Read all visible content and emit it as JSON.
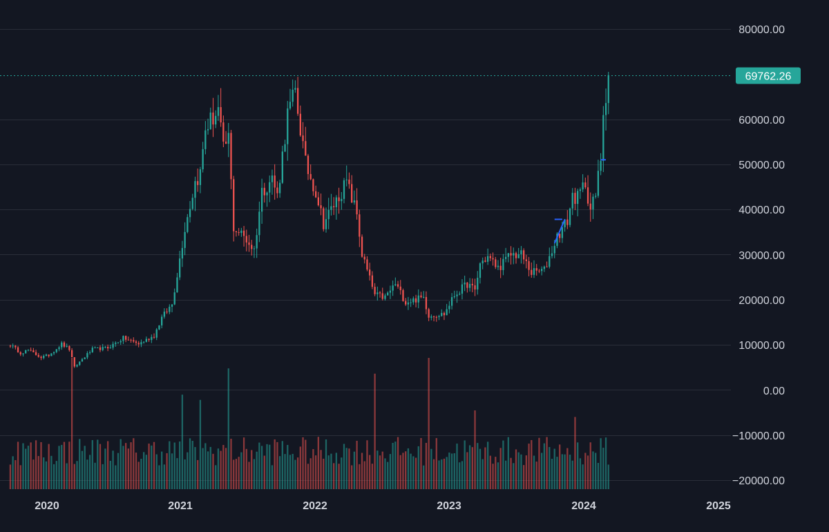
{
  "chart_data": {
    "type": "candlestick",
    "title": "",
    "xlabel": "",
    "ylabel": "",
    "ylim": [
      -23000,
      86000
    ],
    "y_ticks": [
      "80000.00",
      "60000.00",
      "50000.00",
      "40000.00",
      "30000.00",
      "20000.00",
      "10000.00",
      "0.00",
      "−10000.00",
      "−20000.00"
    ],
    "x_ticks": [
      "2020",
      "2021",
      "2022",
      "2023",
      "2024",
      "2025"
    ],
    "last_price": 69762.26,
    "last_price_label": "69762.26",
    "grid": true,
    "legend": "none",
    "colors": {
      "background": "#131722",
      "up": "#26a69a",
      "down": "#ef5350",
      "grid": "#2a2e39",
      "axis_text": "#d1d4dc",
      "price_line": "#26a69a",
      "drawing": "#2962ff"
    },
    "price_anchors": [
      [
        "2019-09-23",
        10000
      ],
      [
        "2019-10-21",
        8200
      ],
      [
        "2019-11-11",
        8800
      ],
      [
        "2019-12-16",
        7200
      ],
      [
        "2020-01-06",
        7700
      ],
      [
        "2020-02-10",
        10200
      ],
      [
        "2020-03-02",
        9000
      ],
      [
        "2020-03-16",
        5000
      ],
      [
        "2020-04-06",
        6800
      ],
      [
        "2020-05-04",
        9000
      ],
      [
        "2020-06-15",
        9300
      ],
      [
        "2020-07-27",
        11500
      ],
      [
        "2020-09-07",
        10200
      ],
      [
        "2020-10-19",
        12000
      ],
      [
        "2020-11-09",
        16000
      ],
      [
        "2020-12-07",
        19000
      ],
      [
        "2020-12-28",
        29000
      ],
      [
        "2021-01-11",
        36000
      ],
      [
        "2021-02-08",
        46000
      ],
      [
        "2021-02-22",
        48000
      ],
      [
        "2021-03-08",
        58000
      ],
      [
        "2021-04-12",
        62000
      ],
      [
        "2021-04-26",
        53000
      ],
      [
        "2021-05-10",
        56000
      ],
      [
        "2021-05-24",
        36000
      ],
      [
        "2021-06-21",
        34000
      ],
      [
        "2021-07-19",
        31000
      ],
      [
        "2021-08-09",
        44000
      ],
      [
        "2021-09-06",
        47000
      ],
      [
        "2021-09-20",
        43000
      ],
      [
        "2021-10-18",
        61000
      ],
      [
        "2021-11-08",
        66000
      ],
      [
        "2021-12-06",
        50000
      ],
      [
        "2022-01-03",
        44000
      ],
      [
        "2022-01-24",
        37000
      ],
      [
        "2022-02-28",
        42000
      ],
      [
        "2022-03-28",
        46000
      ],
      [
        "2022-04-25",
        39000
      ],
      [
        "2022-05-09",
        30000
      ],
      [
        "2022-06-13",
        21000
      ],
      [
        "2022-07-11",
        20500
      ],
      [
        "2022-08-08",
        23500
      ],
      [
        "2022-09-05",
        19500
      ],
      [
        "2022-10-24",
        20500
      ],
      [
        "2022-11-07",
        16500
      ],
      [
        "2022-12-19",
        16800
      ],
      [
        "2023-01-16",
        21000
      ],
      [
        "2023-02-20",
        23500
      ],
      [
        "2023-03-13",
        22000
      ],
      [
        "2023-03-27",
        28000
      ],
      [
        "2023-04-17",
        29500
      ],
      [
        "2023-05-15",
        27000
      ],
      [
        "2023-06-19",
        30000
      ],
      [
        "2023-07-17",
        30000
      ],
      [
        "2023-08-14",
        26000
      ],
      [
        "2023-09-18",
        26500
      ],
      [
        "2023-10-23",
        34000
      ],
      [
        "2023-11-20",
        37500
      ],
      [
        "2023-12-04",
        43000
      ],
      [
        "2023-12-18",
        42500
      ],
      [
        "2024-01-08",
        46000
      ],
      [
        "2024-01-22",
        40000
      ],
      [
        "2024-02-05",
        43000
      ],
      [
        "2024-02-19",
        51500
      ],
      [
        "2024-02-26",
        62000
      ],
      [
        "2024-03-04",
        66000
      ],
      [
        "2024-03-11",
        69762
      ]
    ],
    "volume_spikes": [
      [
        "2020-03-09",
        1.0
      ],
      [
        "2021-05-10",
        0.92
      ],
      [
        "2022-06-13",
        0.88
      ],
      [
        "2022-11-07",
        1.0
      ],
      [
        "2021-01-04",
        0.72
      ],
      [
        "2021-02-22",
        0.68
      ],
      [
        "2023-03-13",
        0.6
      ],
      [
        "2023-12-11",
        0.55
      ]
    ],
    "drawings": [
      {
        "type": "horizontal-segment",
        "x": [
          "2023-10-16",
          "2023-11-06"
        ],
        "y": 37800
      },
      {
        "type": "trend-line",
        "x": [
          "2023-10-16",
          "2023-11-13"
        ],
        "y": [
          32500,
          37800
        ]
      },
      {
        "type": "horizontal-segment",
        "x": [
          "2024-02-19",
          "2024-03-04"
        ],
        "y": 51000
      }
    ],
    "x_range": [
      "2019-09-01",
      "2025-01-01"
    ]
  }
}
